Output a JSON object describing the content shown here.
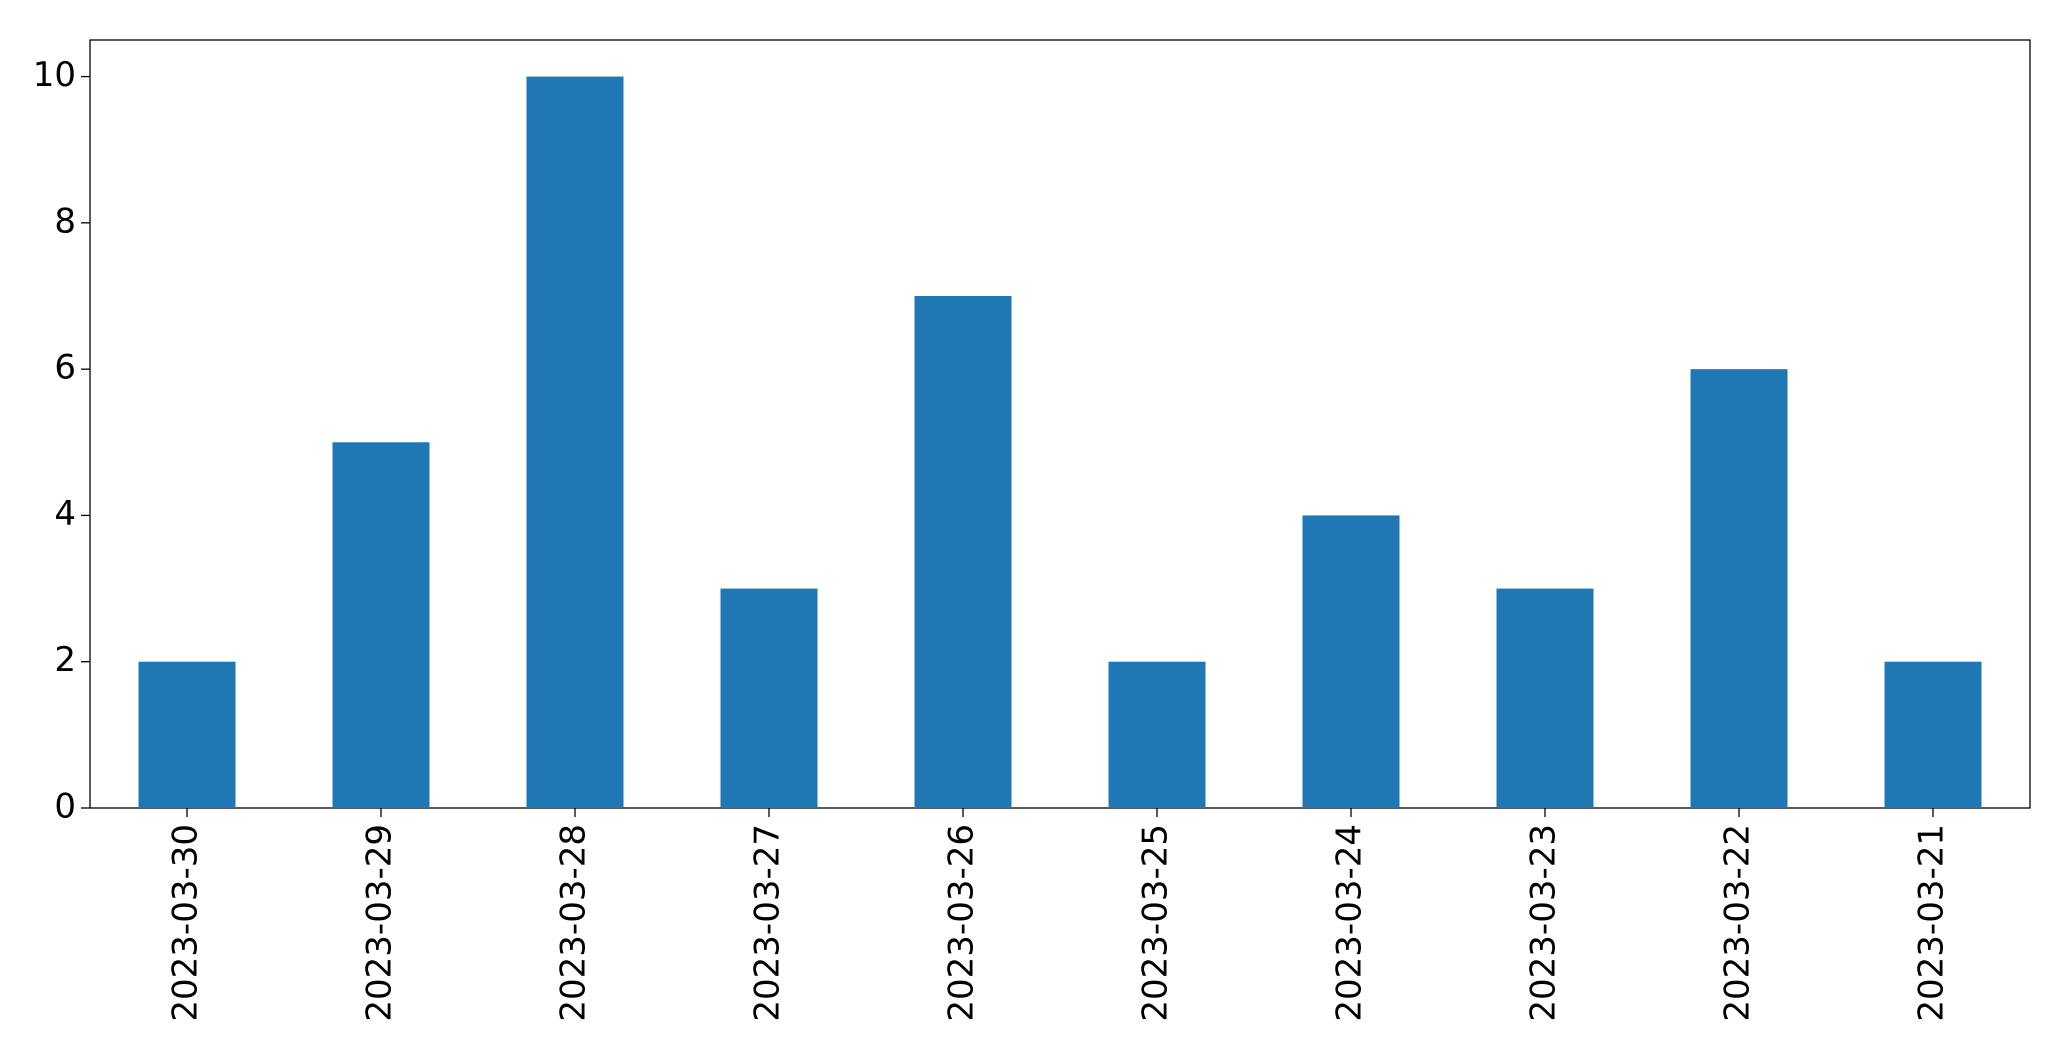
{
  "chart_data": {
    "type": "bar",
    "categories": [
      "2023-03-30",
      "2023-03-29",
      "2023-03-28",
      "2023-03-27",
      "2023-03-26",
      "2023-03-25",
      "2023-03-24",
      "2023-03-23",
      "2023-03-22",
      "2023-03-21"
    ],
    "values": [
      2,
      5,
      10,
      3,
      7,
      2,
      4,
      3,
      6,
      2
    ],
    "color": "#1f77b4",
    "ylim": [
      0,
      10.5
    ],
    "yticks": [
      0,
      2,
      4,
      6,
      8,
      10
    ],
    "grid": false
  }
}
